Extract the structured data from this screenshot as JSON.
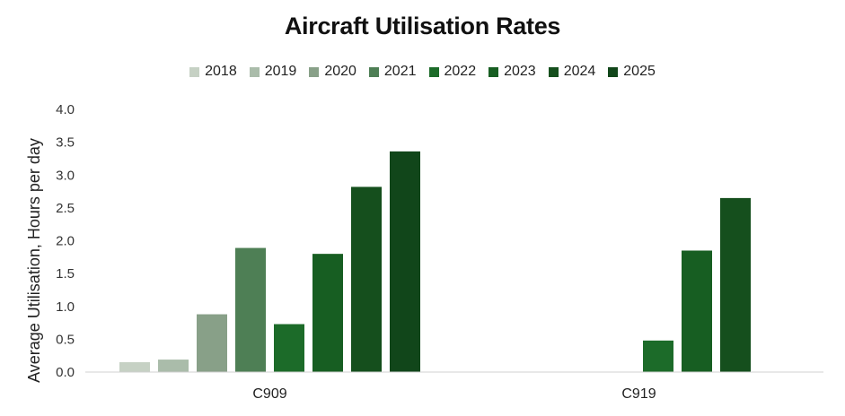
{
  "chart_data": {
    "type": "bar",
    "title": "Aircraft Utilisation Rates",
    "xlabel": "",
    "ylabel": "Average Utilisation, Hours per day",
    "ylim": [
      0,
      4.0
    ],
    "yticks": [
      "0.0",
      "0.5",
      "1.0",
      "1.5",
      "2.0",
      "2.5",
      "3.0",
      "3.5",
      "4.0"
    ],
    "categories": [
      "C909",
      "C919"
    ],
    "grid": false,
    "legend_position": "top",
    "series": [
      {
        "name": "2018",
        "color": "#c6d1c4",
        "values": [
          0.15,
          null
        ]
      },
      {
        "name": "2019",
        "color": "#aabcaa",
        "values": [
          0.19,
          null
        ]
      },
      {
        "name": "2020",
        "color": "#88a088",
        "values": [
          0.88,
          null
        ]
      },
      {
        "name": "2021",
        "color": "#4e7f55",
        "values": [
          1.89,
          null
        ]
      },
      {
        "name": "2022",
        "color": "#1c6b29",
        "values": [
          0.73,
          0.48
        ]
      },
      {
        "name": "2023",
        "color": "#175e22",
        "values": [
          1.8,
          1.85
        ]
      },
      {
        "name": "2024",
        "color": "#154f1d",
        "values": [
          2.82,
          2.65
        ]
      },
      {
        "name": "2025",
        "color": "#11461a",
        "values": [
          3.36,
          null
        ]
      }
    ]
  }
}
